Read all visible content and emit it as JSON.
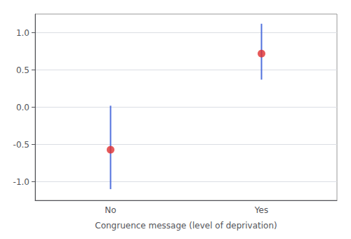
{
  "chart_data": {
    "type": "scatter",
    "xlabel": "Congruence message (level of deprivation)",
    "categories": [
      "No",
      "Yes"
    ],
    "values": [
      -0.57,
      0.72
    ],
    "ci_lower": [
      -1.1,
      0.37
    ],
    "ci_upper": [
      0.02,
      1.12
    ],
    "color": "#e03030",
    "marker": "circle",
    "ylim": [
      -1.25,
      1.25
    ],
    "yticks": [
      {
        "value": -1.0,
        "label": "-1.0"
      },
      -0.5,
      {
        "value": 0.0,
        "label": "0.0"
      },
      0.5,
      {
        "value": 1.0,
        "label": "1.0"
      }
    ],
    "grid": true
  }
}
